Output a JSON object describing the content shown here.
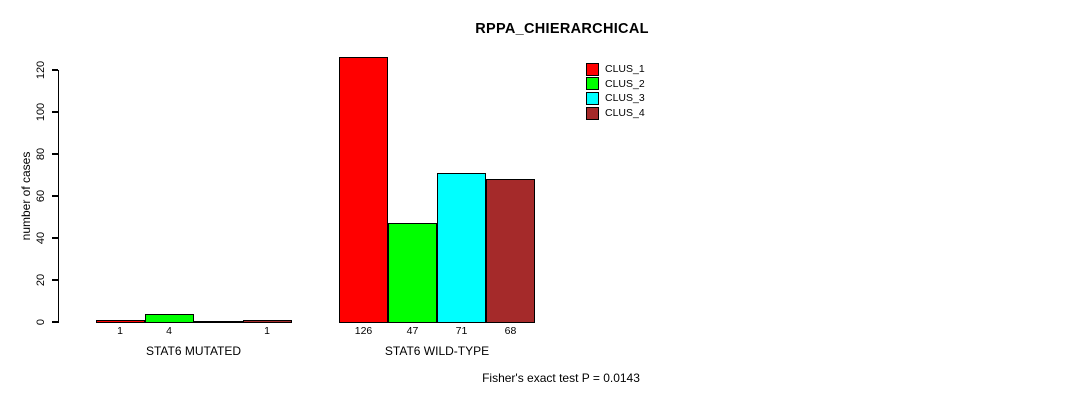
{
  "title": "RPPA_CHIERARCHICAL",
  "footer": "Fisher's exact test P = 0.0143",
  "y_axis": {
    "label": "number of cases",
    "ticks": [
      0,
      20,
      40,
      60,
      80,
      100,
      120
    ]
  },
  "legend": [
    {
      "label": "CLUS_1",
      "color": "#ff0000"
    },
    {
      "label": "CLUS_2",
      "color": "#00ff00"
    },
    {
      "label": "CLUS_3",
      "color": "#00ffff"
    },
    {
      "label": "CLUS_4",
      "color": "#a52a2a"
    }
  ],
  "chart_data": {
    "type": "bar",
    "title": "RPPA_CHIERARCHICAL",
    "xlabel": "",
    "ylabel": "number of cases",
    "ylim": [
      0,
      120
    ],
    "yticks": [
      0,
      20,
      40,
      60,
      80,
      100,
      120
    ],
    "grid": false,
    "legend_position": "top-right",
    "categories": [
      "STAT6 MUTATED",
      "STAT6 WILD-TYPE"
    ],
    "series": [
      {
        "name": "CLUS_1",
        "color": "#ff0000",
        "values": [
          1,
          126
        ]
      },
      {
        "name": "CLUS_2",
        "color": "#00ff00",
        "values": [
          4,
          47
        ]
      },
      {
        "name": "CLUS_3",
        "color": "#00ffff",
        "values": [
          0,
          71
        ]
      },
      {
        "name": "CLUS_4",
        "color": "#a52a2a",
        "values": [
          1,
          68
        ]
      }
    ],
    "bar_value_labels": [
      [
        "1",
        "4",
        "",
        "1"
      ],
      [
        "126",
        "47",
        "71",
        "68"
      ]
    ],
    "annotation": "Fisher's exact test P = 0.0143"
  }
}
